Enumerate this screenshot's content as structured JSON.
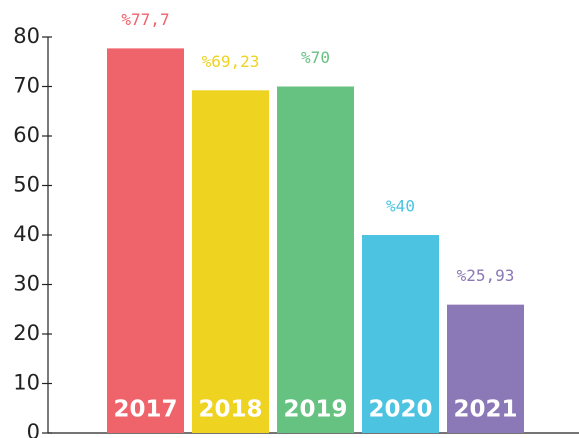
{
  "chart_data": {
    "type": "bar",
    "categories": [
      "2017",
      "2018",
      "2019",
      "2020",
      "2021"
    ],
    "values": [
      77.7,
      69.23,
      70,
      40,
      25.93
    ],
    "value_labels": [
      "%77,7",
      "%69,23",
      "%70",
      "%40",
      "%25,93"
    ],
    "colors": [
      "#ef636b",
      "#eed321",
      "#66c281",
      "#4bc3e1",
      "#8b78b6"
    ],
    "ylim": [
      0,
      80
    ],
    "yticks": [
      0,
      10,
      20,
      30,
      40,
      50,
      60,
      70,
      80
    ],
    "grid": false
  }
}
